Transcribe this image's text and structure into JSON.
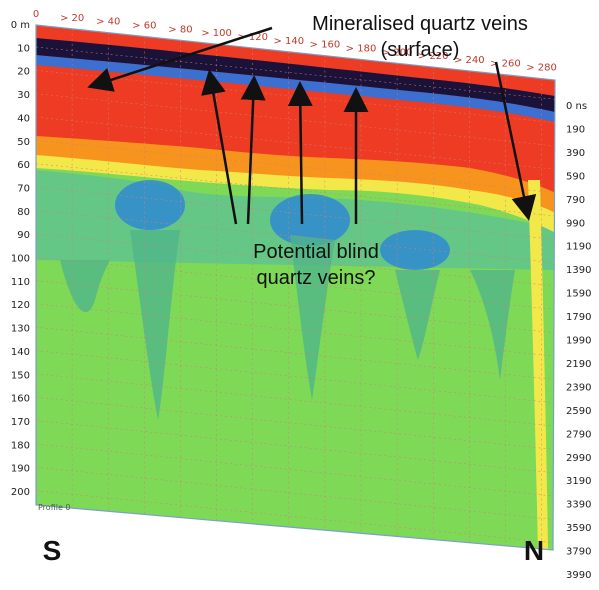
{
  "top_axis": {
    "labels": [
      "0",
      "20",
      "40",
      "60",
      "80",
      "100",
      "120",
      "140",
      "160",
      "180",
      "200",
      "220",
      "240",
      "260",
      "280"
    ]
  },
  "depth_axis": {
    "labels": [
      "0 m",
      "10",
      "20",
      "30",
      "40",
      "50",
      "60",
      "70",
      "80",
      "90",
      "100",
      "110",
      "120",
      "130",
      "140",
      "150",
      "160",
      "170",
      "180",
      "190",
      "200"
    ]
  },
  "time_axis": {
    "labels": [
      "0 ns",
      "190",
      "390",
      "590",
      "790",
      "990",
      "1190",
      "1390",
      "1590",
      "1790",
      "1990",
      "2190",
      "2390",
      "2590",
      "2790",
      "2990",
      "3190",
      "3390",
      "3590",
      "3790",
      "3990"
    ]
  },
  "annotations": {
    "surface_line1": "Mineralised quartz veins",
    "surface_line2": "(surface)",
    "blind_line1": "Potential blind",
    "blind_line2": "quartz veins?"
  },
  "directions": {
    "south": "S",
    "north": "N"
  },
  "profile_label": "Profile 0",
  "colors": {
    "background_green": "#7ed957",
    "teal": "#4fb58a",
    "blue": "#2f8ad1",
    "yellow": "#f3e84a",
    "orange": "#f7941d",
    "red": "#ee3b24",
    "dark_band": "#1a1238",
    "grid": "#d97a7a"
  }
}
